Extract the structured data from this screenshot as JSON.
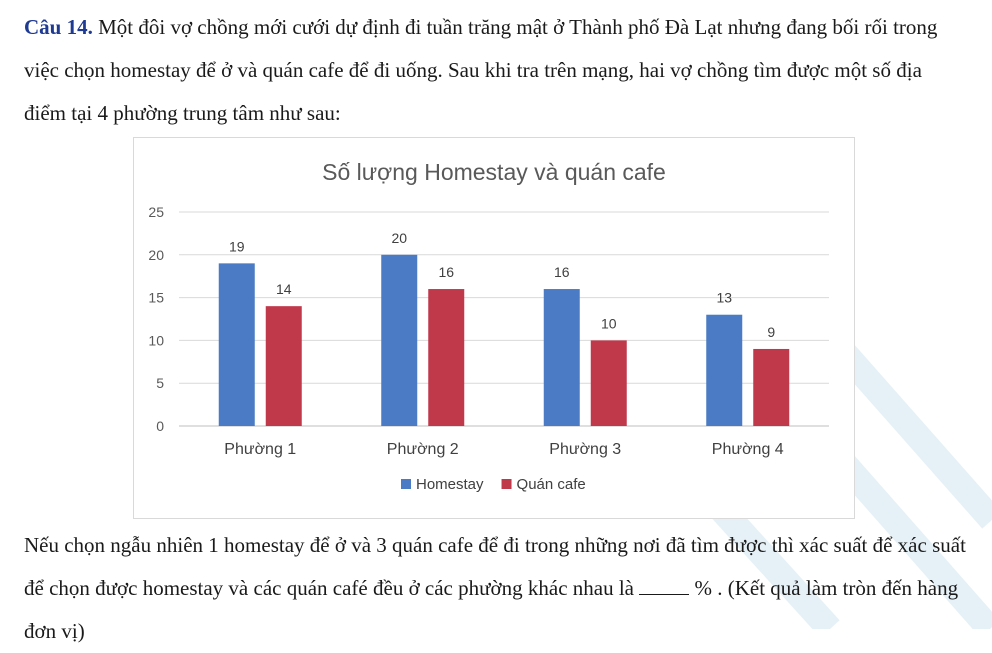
{
  "question": {
    "label": "Câu 14.",
    "intro": "Một đôi vợ chồng mới cưới dự định đi tuần trăng mật ở Thành phố Đà Lạt nhưng đang bối rối trong việc chọn homestay để ở và quán cafe để đi uống. Sau khi tra trên mạng, hai vợ chồng tìm được một số địa điểm tại 4 phường trung tâm như sau:",
    "outro_before_blank": "Nếu chọn ngẫu nhiên 1 homestay để ở và 3 quán cafe để đi trong những nơi đã tìm được thì xác suất để xác suất để chọn được homestay và các quán café đều ở các phường khác nhau là",
    "outro_after_blank": "% . (Kết quả làm tròn đến hàng đơn vị)"
  },
  "colors": {
    "homestay": "#4a7bc4",
    "cafe": "#c0394b",
    "question_label": "#1f3a93"
  },
  "chart_data": {
    "type": "bar",
    "title": "Số lượng Homestay và quán cafe",
    "categories": [
      "Phường 1",
      "Phường 2",
      "Phường 3",
      "Phường 4"
    ],
    "series": [
      {
        "name": "Homestay",
        "values": [
          19,
          20,
          16,
          13
        ],
        "color": "#4a7bc4"
      },
      {
        "name": "Quán cafe",
        "values": [
          14,
          16,
          10,
          9
        ],
        "color": "#c0394b"
      }
    ],
    "ylim": [
      0,
      25
    ],
    "yticks": [
      0,
      5,
      10,
      15,
      20,
      25
    ],
    "xlabel": "",
    "ylabel": "",
    "grid": true,
    "legend": "bottom-center"
  }
}
